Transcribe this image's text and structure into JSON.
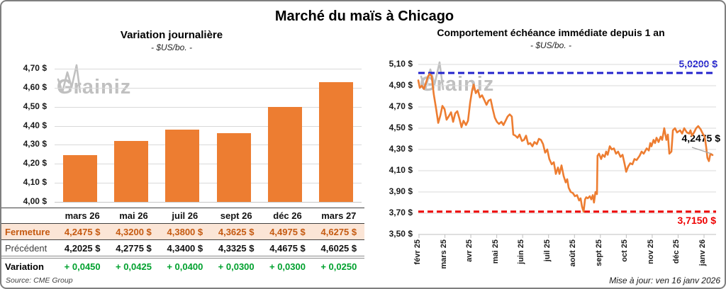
{
  "page": {
    "title": "Marché du maïs à Chicago",
    "updated": "Mise à jour: ven 16 janv 2026",
    "source": "Source: CME Group",
    "watermark": {
      "part1": "Grain",
      "part2": "iz"
    }
  },
  "colors": {
    "orange": "#ed7d31",
    "grid": "#d9d9d9",
    "axis": "#c6c6c6",
    "peach_row": "#fbe5d6",
    "fermeture_text": "#c55a11",
    "variation_green": "#00a12e",
    "high_blue": "#2222cc",
    "low_red": "#ee0000",
    "leader_gray": "#a6a6a6"
  },
  "chart_data": [
    {
      "id": "daily_variation_bar",
      "type": "bar",
      "title": "Variation journalière",
      "subtitle": "- $US/bo. -",
      "categories": [
        "mars 26",
        "mai 26",
        "juil 26",
        "sept 26",
        "déc 26",
        "mars 27"
      ],
      "values": [
        4.2475,
        4.32,
        4.38,
        4.3625,
        4.4975,
        4.6275
      ],
      "ylim": [
        4.0,
        4.7
      ],
      "ytick_step": 0.1,
      "ytick_suffix": " $",
      "grid": true,
      "bar_color": "#ed7d31"
    },
    {
      "id": "front_month_line",
      "type": "line",
      "title": "Comportement échéance immédiate depuis 1 an",
      "subtitle": "- $US/bo. -",
      "x_ticks": [
        "févr 25",
        "mars 25",
        "avr 25",
        "mai 25",
        "juin 25",
        "juil 25",
        "août 25",
        "sept 25",
        "oct 25",
        "nov 25",
        "déc 25",
        "janv 26"
      ],
      "ylim": [
        3.5,
        5.1
      ],
      "ytick_step": 0.2,
      "ytick_suffix": " $",
      "grid": true,
      "line_color": "#ed7d31",
      "high_line": {
        "value": 5.02,
        "label": "5,0200 $",
        "color": "#2222cc",
        "style": "dashed"
      },
      "low_line": {
        "value": 3.715,
        "label": "3,7150 $",
        "color": "#ee0000",
        "style": "dashed"
      },
      "last_point": {
        "value": 4.2475,
        "label": "4,2475 $"
      },
      "points": [
        [
          0.0,
          4.95
        ],
        [
          0.005,
          4.88
        ],
        [
          0.012,
          4.9
        ],
        [
          0.019,
          4.87
        ],
        [
          0.026,
          4.93
        ],
        [
          0.033,
          4.99
        ],
        [
          0.038,
          5.01
        ],
        [
          0.045,
          4.99
        ],
        [
          0.052,
          4.82
        ],
        [
          0.06,
          4.68
        ],
        [
          0.067,
          4.55
        ],
        [
          0.074,
          4.62
        ],
        [
          0.081,
          4.71
        ],
        [
          0.088,
          4.68
        ],
        [
          0.095,
          4.58
        ],
        [
          0.102,
          4.61
        ],
        [
          0.11,
          4.65
        ],
        [
          0.117,
          4.56
        ],
        [
          0.124,
          4.64
        ],
        [
          0.131,
          4.66
        ],
        [
          0.138,
          4.59
        ],
        [
          0.145,
          4.51
        ],
        [
          0.152,
          4.57
        ],
        [
          0.16,
          4.53
        ],
        [
          0.167,
          4.57
        ],
        [
          0.174,
          4.74
        ],
        [
          0.181,
          4.86
        ],
        [
          0.186,
          4.91
        ],
        [
          0.193,
          4.83
        ],
        [
          0.2,
          4.86
        ],
        [
          0.207,
          4.79
        ],
        [
          0.214,
          4.81
        ],
        [
          0.221,
          4.77
        ],
        [
          0.229,
          4.72
        ],
        [
          0.236,
          4.76
        ],
        [
          0.243,
          4.77
        ],
        [
          0.25,
          4.68
        ],
        [
          0.257,
          4.6
        ],
        [
          0.264,
          4.56
        ],
        [
          0.271,
          4.54
        ],
        [
          0.279,
          4.56
        ],
        [
          0.286,
          4.53
        ],
        [
          0.293,
          4.57
        ],
        [
          0.3,
          4.61
        ],
        [
          0.307,
          4.63
        ],
        [
          0.314,
          4.61
        ],
        [
          0.319,
          4.44
        ],
        [
          0.326,
          4.43
        ],
        [
          0.333,
          4.41
        ],
        [
          0.34,
          4.44
        ],
        [
          0.348,
          4.38
        ],
        [
          0.355,
          4.39
        ],
        [
          0.362,
          4.43
        ],
        [
          0.369,
          4.35
        ],
        [
          0.376,
          4.36
        ],
        [
          0.383,
          4.33
        ],
        [
          0.39,
          4.37
        ],
        [
          0.398,
          4.35
        ],
        [
          0.405,
          4.4
        ],
        [
          0.412,
          4.39
        ],
        [
          0.419,
          4.35
        ],
        [
          0.426,
          4.27
        ],
        [
          0.433,
          4.3
        ],
        [
          0.44,
          4.21
        ],
        [
          0.448,
          4.16
        ],
        [
          0.455,
          4.18
        ],
        [
          0.462,
          4.07
        ],
        [
          0.469,
          4.13
        ],
        [
          0.474,
          4.07
        ],
        [
          0.481,
          4.15
        ],
        [
          0.488,
          4.05
        ],
        [
          0.495,
          3.99
        ],
        [
          0.5,
          4.02
        ],
        [
          0.505,
          3.94
        ],
        [
          0.512,
          3.9
        ],
        [
          0.519,
          3.89
        ],
        [
          0.526,
          3.86
        ],
        [
          0.533,
          3.87
        ],
        [
          0.54,
          3.82
        ],
        [
          0.545,
          3.84
        ],
        [
          0.55,
          3.76
        ],
        [
          0.555,
          3.715
        ],
        [
          0.56,
          3.83
        ],
        [
          0.564,
          3.85
        ],
        [
          0.569,
          3.84
        ],
        [
          0.576,
          3.86
        ],
        [
          0.581,
          3.83
        ],
        [
          0.586,
          3.87
        ],
        [
          0.59,
          3.8
        ],
        [
          0.595,
          3.9
        ],
        [
          0.6,
          3.88
        ],
        [
          0.602,
          4.24
        ],
        [
          0.607,
          4.26
        ],
        [
          0.614,
          4.21
        ],
        [
          0.619,
          4.25
        ],
        [
          0.626,
          4.23
        ],
        [
          0.631,
          4.28
        ],
        [
          0.636,
          4.25
        ],
        [
          0.643,
          4.33
        ],
        [
          0.65,
          4.3
        ],
        [
          0.657,
          4.31
        ],
        [
          0.664,
          4.26
        ],
        [
          0.671,
          4.28
        ],
        [
          0.679,
          4.23
        ],
        [
          0.686,
          4.25
        ],
        [
          0.693,
          4.16
        ],
        [
          0.698,
          4.09
        ],
        [
          0.705,
          4.14
        ],
        [
          0.712,
          4.17
        ],
        [
          0.719,
          4.16
        ],
        [
          0.726,
          4.21
        ],
        [
          0.733,
          4.2
        ],
        [
          0.743,
          4.24
        ],
        [
          0.75,
          4.28
        ],
        [
          0.757,
          4.26
        ],
        [
          0.767,
          4.31
        ],
        [
          0.774,
          4.29
        ],
        [
          0.779,
          4.36
        ],
        [
          0.783,
          4.33
        ],
        [
          0.79,
          4.39
        ],
        [
          0.795,
          4.36
        ],
        [
          0.8,
          4.41
        ],
        [
          0.807,
          4.37
        ],
        [
          0.814,
          4.42
        ],
        [
          0.819,
          4.39
        ],
        [
          0.826,
          4.5
        ],
        [
          0.833,
          4.39
        ],
        [
          0.838,
          4.44
        ],
        [
          0.843,
          4.26
        ],
        [
          0.85,
          4.28
        ],
        [
          0.855,
          4.48
        ],
        [
          0.862,
          4.5
        ],
        [
          0.869,
          4.46
        ],
        [
          0.879,
          4.48
        ],
        [
          0.886,
          4.45
        ],
        [
          0.893,
          4.5
        ],
        [
          0.902,
          4.46
        ],
        [
          0.91,
          4.45
        ],
        [
          0.914,
          4.48
        ],
        [
          0.919,
          4.43
        ],
        [
          0.926,
          4.46
        ],
        [
          0.933,
          4.5
        ],
        [
          0.94,
          4.52
        ],
        [
          0.948,
          4.49
        ],
        [
          0.955,
          4.45
        ],
        [
          0.962,
          4.42
        ],
        [
          0.967,
          4.32
        ],
        [
          0.971,
          4.22
        ],
        [
          0.976,
          4.19
        ],
        [
          0.981,
          4.26
        ],
        [
          0.988,
          4.2475
        ]
      ]
    }
  ],
  "table": {
    "columns": [
      "mars 26",
      "mai 26",
      "juil 26",
      "sept 26",
      "déc 26",
      "mars 27"
    ],
    "rows": [
      {
        "label": "Fermeture",
        "values": [
          "4,2475 $",
          "4,3200 $",
          "4,3800 $",
          "4,3625 $",
          "4,4975 $",
          "4,6275 $"
        ]
      },
      {
        "label": "Précédent",
        "values": [
          "4,2025 $",
          "4,2775 $",
          "4,3400 $",
          "4,3325 $",
          "4,4675 $",
          "4,6025 $"
        ]
      },
      {
        "label": "Variation",
        "values": [
          "+ 0,0450",
          "+ 0,0425",
          "+ 0,0400",
          "+ 0,0300",
          "+ 0,0300",
          "+ 0,0250"
        ]
      }
    ]
  }
}
